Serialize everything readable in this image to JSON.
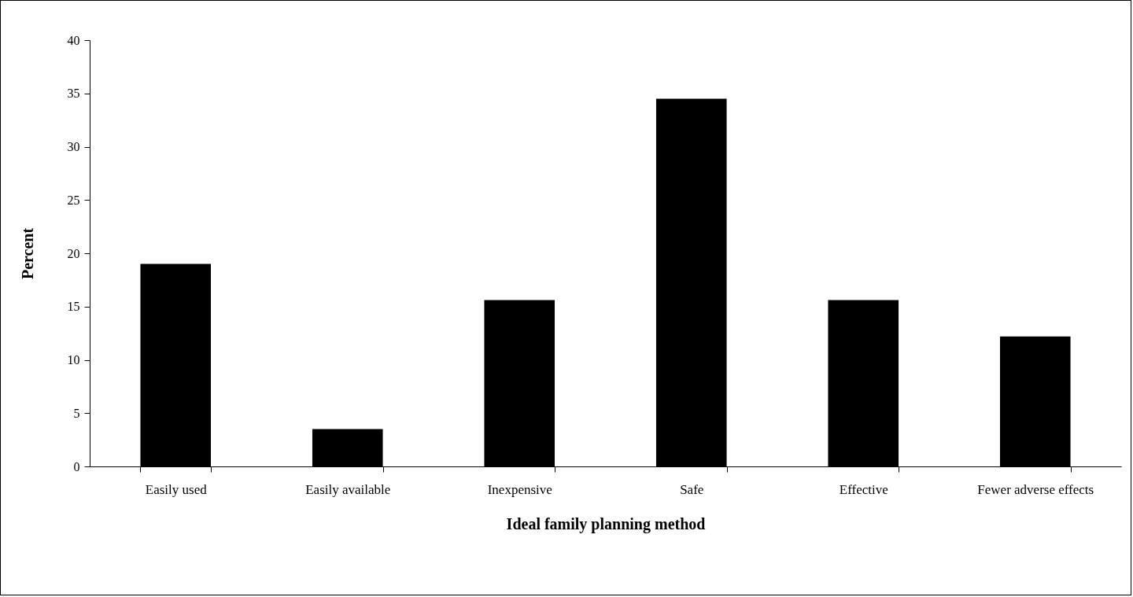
{
  "chart_data": {
    "type": "bar",
    "xlabel": "Ideal family planning method",
    "ylabel": "Percent",
    "categories": [
      "Easily used",
      "Easily available",
      "Inexpensive",
      "Safe",
      "Effective",
      "Fewer adverse effects"
    ],
    "values": [
      19.0,
      3.5,
      15.6,
      34.5,
      15.6,
      12.2
    ],
    "color": "#000000",
    "ylim": [
      0,
      40
    ],
    "yticks": [
      0,
      5,
      10,
      15,
      20,
      25,
      30,
      35,
      40
    ],
    "grid": false
  }
}
